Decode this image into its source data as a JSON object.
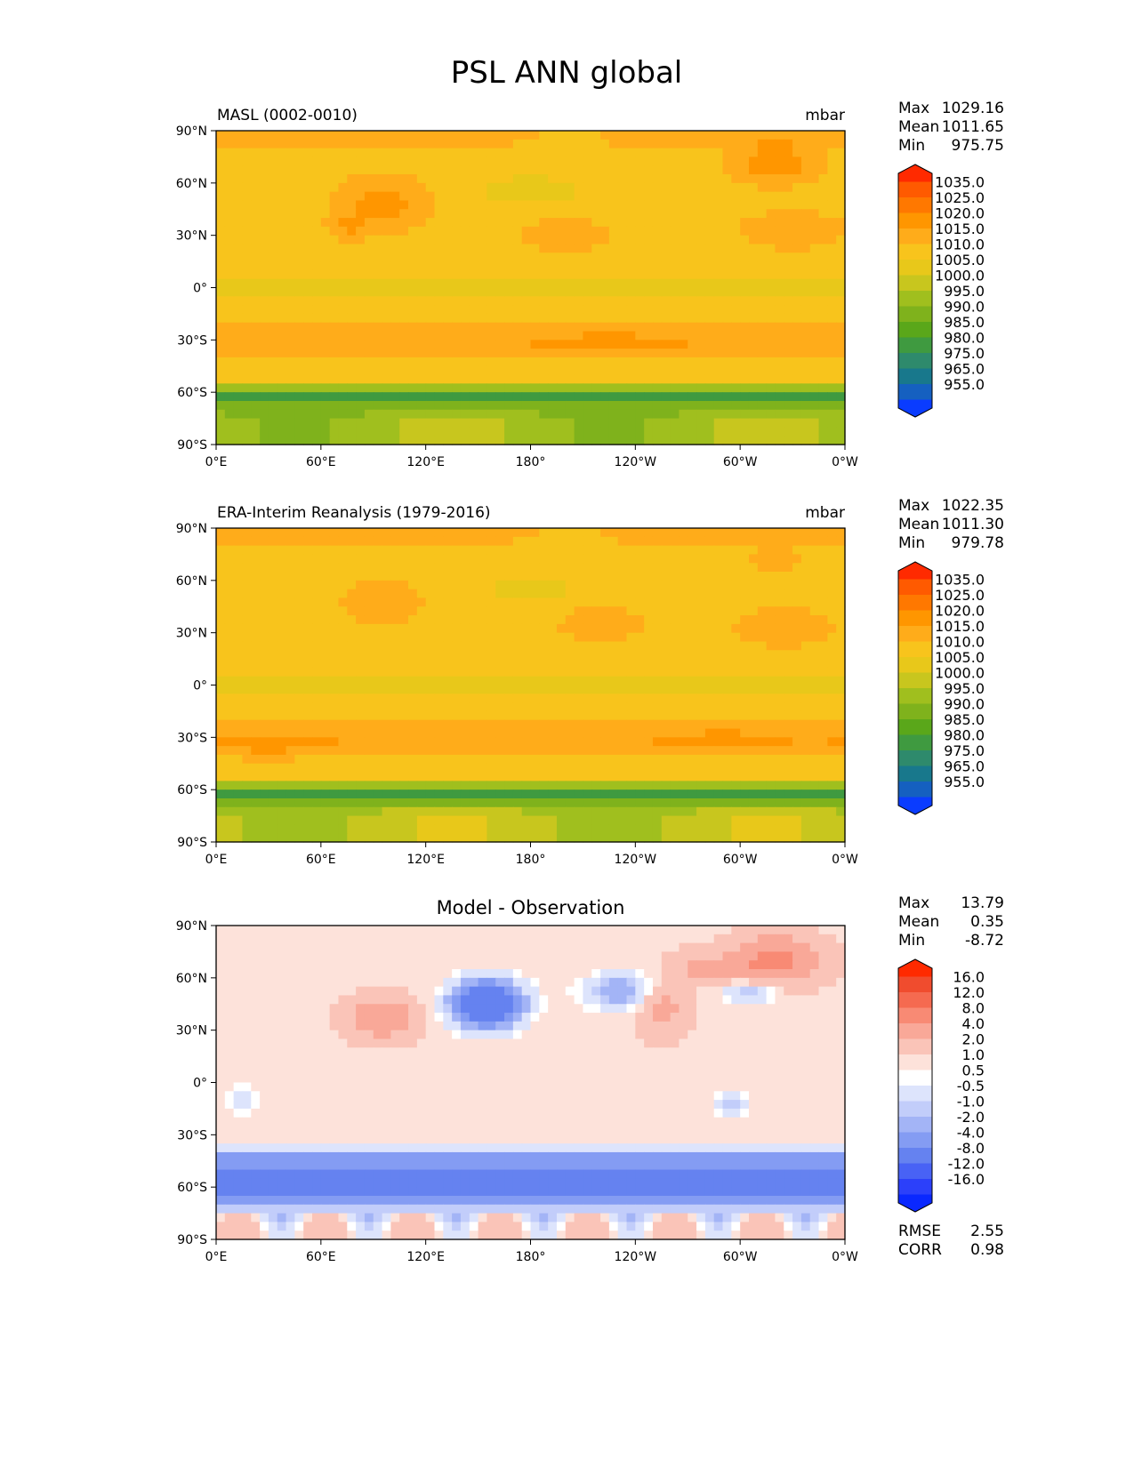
{
  "suptitle": "PSL ANN global",
  "x_ticks": [
    "0°E",
    "60°E",
    "120°E",
    "180°",
    "120°W",
    "60°W",
    "0°W"
  ],
  "y_ticks": [
    "90°N",
    "60°N",
    "30°N",
    "0°",
    "30°S",
    "60°S",
    "90°S"
  ],
  "stat_labels": {
    "max": "Max",
    "mean": "Mean",
    "min": "Min",
    "rmse": "RMSE",
    "corr": "CORR"
  },
  "panels": [
    {
      "title_left": "MASL (0002-0010)",
      "title_center": "",
      "units": "mbar",
      "stats": {
        "max": "1029.16",
        "mean": "1011.65",
        "min": "975.75"
      },
      "colorbar_labels": [
        "1035.0",
        "1025.0",
        "1020.0",
        "1015.0",
        "1010.0",
        "1005.0",
        "1000.0",
        "995.0",
        "990.0",
        "985.0",
        "980.0",
        "975.0",
        "965.0",
        "955.0"
      ]
    },
    {
      "title_left": "ERA-Interim Reanalysis (1979-2016)",
      "title_center": "",
      "units": "mbar",
      "stats": {
        "max": "1022.35",
        "mean": "1011.30",
        "min": "979.78"
      },
      "colorbar_labels": [
        "1035.0",
        "1025.0",
        "1020.0",
        "1015.0",
        "1010.0",
        "1005.0",
        "1000.0",
        "995.0",
        "990.0",
        "985.0",
        "980.0",
        "975.0",
        "965.0",
        "955.0"
      ]
    },
    {
      "title_left": "",
      "title_center": "Model - Observation",
      "units": "",
      "stats": {
        "max": "13.79",
        "mean": "0.35",
        "min": "-8.72"
      },
      "colorbar_labels": [
        "16.0",
        "12.0",
        "8.0",
        "4.0",
        "2.0",
        "1.0",
        "0.5",
        "-0.5",
        "-1.0",
        "-2.0",
        "-4.0",
        "-8.0",
        "-12.0",
        "-16.0"
      ],
      "metrics": {
        "rmse": "2.55",
        "corr": "0.98"
      }
    }
  ],
  "colors": {
    "psl_ramp": [
      "#ff2a00",
      "#ff5a00",
      "#ff7800",
      "#ff9600",
      "#ffac1a",
      "#f8c41c",
      "#e8c81a",
      "#c8c61e",
      "#a0bf1e",
      "#7fb21c",
      "#5aa71a",
      "#3f9a40",
      "#2e8a6c",
      "#18788c",
      "#1560c0",
      "#0a3cff"
    ],
    "diff_ramp": [
      "#ff2a00",
      "#f04c2e",
      "#f56a50",
      "#f88a74",
      "#f9a898",
      "#fac4b8",
      "#fde2da",
      "#ffffff",
      "#dde4fc",
      "#c2cdfa",
      "#a3b4f6",
      "#849cf3",
      "#6582f0",
      "#4862f5",
      "#2c40fa",
      "#0a28ff"
    ]
  },
  "chart_data": [
    {
      "type": "heatmap",
      "title": "MASL (0002-0010)",
      "units": "mbar",
      "x_range": [
        0,
        360
      ],
      "y_range": [
        -90,
        90
      ],
      "contour_levels": [
        955,
        965,
        975,
        980,
        985,
        990,
        995,
        1000,
        1005,
        1010,
        1015,
        1020,
        1025,
        1035
      ],
      "max": 1029.16,
      "mean": 1011.65,
      "min": 975.75
    },
    {
      "type": "heatmap",
      "title": "ERA-Interim Reanalysis (1979-2016)",
      "units": "mbar",
      "x_range": [
        0,
        360
      ],
      "y_range": [
        -90,
        90
      ],
      "contour_levels": [
        955,
        965,
        975,
        980,
        985,
        990,
        995,
        1000,
        1005,
        1010,
        1015,
        1020,
        1025,
        1035
      ],
      "max": 1022.35,
      "mean": 1011.3,
      "min": 979.78
    },
    {
      "type": "heatmap",
      "title": "Model - Observation",
      "x_range": [
        0,
        360
      ],
      "y_range": [
        -90,
        90
      ],
      "contour_levels": [
        -16,
        -12,
        -8,
        -4,
        -2,
        -1,
        -0.5,
        0.5,
        1,
        2,
        4,
        8,
        12,
        16
      ],
      "max": 13.79,
      "mean": 0.35,
      "min": -8.72,
      "rmse": 2.55,
      "corr": 0.98
    }
  ]
}
